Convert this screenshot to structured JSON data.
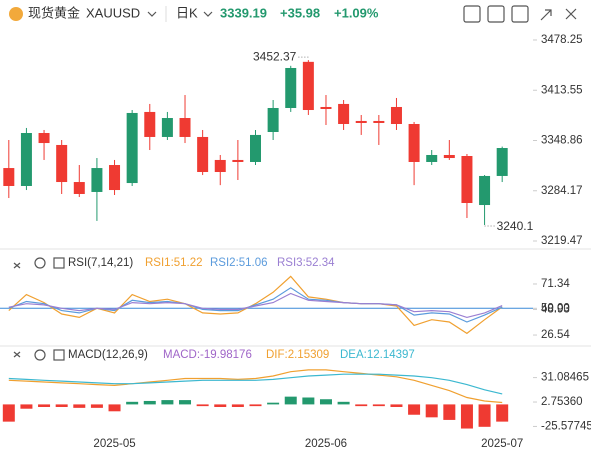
{
  "header": {
    "name": "现货黄金",
    "symbol": "XAUUSD",
    "period": "日K",
    "price": 3339.19,
    "change": "+35.98",
    "change_pct": "+1.09%"
  },
  "chart_data": [
    {
      "type": "candlestick",
      "categories": [
        null,
        null,
        null,
        null,
        null,
        null,
        "2025-05",
        null,
        null,
        null,
        null,
        null,
        null,
        null,
        null,
        null,
        null,
        null,
        "2025-06",
        null,
        null,
        null,
        null,
        null,
        null,
        null,
        null,
        null,
        "2025-07"
      ],
      "open": [
        3313.4,
        3290.3,
        3358.5,
        3343.1,
        3295.4,
        3282.6,
        3317.3,
        3294.1,
        3385.6,
        3353.4,
        3377.8,
        3353.4,
        3323.8,
        3323.8,
        3321.2,
        3359.8,
        3390.7,
        3450.1,
        3392.0,
        3395.9,
        3374.0,
        3374.0,
        3392.0,
        3370.1,
        3321.2,
        3330.2,
        3328.9,
        3265.8,
        3303.2
      ],
      "high": [
        3349.5,
        3365.0,
        3362.4,
        3349.5,
        3317.3,
        3326.3,
        3323.8,
        3388.1,
        3395.9,
        3385.6,
        3407.4,
        3362.4,
        3330.2,
        3349.5,
        3362.4,
        3401.0,
        3445.0,
        3452.37,
        3407.4,
        3401.0,
        3381.7,
        3381.7,
        3403.6,
        3372.7,
        3336.6,
        3349.5,
        3331.5,
        3304.4,
        3341.0
      ],
      "low": [
        3274.8,
        3285.1,
        3323.8,
        3280.0,
        3276.1,
        3245.35,
        3278.7,
        3290.3,
        3336.6,
        3349.5,
        3345.6,
        3304.4,
        3291.4,
        3298.0,
        3317.3,
        3349.5,
        3385.6,
        3381.7,
        3368.8,
        3362.4,
        3356.0,
        3343.1,
        3362.4,
        3291.4,
        3317.3,
        3323.8,
        3249.1,
        3240.1,
        3295.4
      ],
      "close": [
        3290.3,
        3358.5,
        3345.6,
        3295.4,
        3280.0,
        3313.4,
        3285.1,
        3384.3,
        3353.4,
        3377.8,
        3353.4,
        3308.3,
        3308.3,
        3321.2,
        3356.0,
        3390.7,
        3442.2,
        3388.1,
        3389.4,
        3370.1,
        3371.4,
        3371.4,
        3370.1,
        3321.2,
        3330.2,
        3326.3,
        3268.4,
        3303.2,
        3339.19
      ],
      "up_color": "#23996e",
      "down_color": "#ef3a32",
      "ylim": [
        3207.9,
        3491.1
      ],
      "yticks": [
        3219.47,
        3284.17,
        3348.86,
        3413.55,
        3478.25
      ]
    },
    {
      "type": "line",
      "title": "RSI(7,14,21)",
      "series": [
        {
          "name": "RSI1:51.22",
          "color": "#f0a030",
          "values": [
            48,
            62,
            55,
            45,
            42,
            50,
            46,
            62,
            56,
            58,
            54,
            46,
            45,
            46,
            54,
            64,
            78,
            60,
            58,
            55,
            54,
            54,
            52,
            35,
            40,
            38,
            28,
            40,
            51.22
          ]
        },
        {
          "name": "RSI2:51.06",
          "color": "#5b9bdc",
          "values": [
            50,
            56,
            54,
            48,
            46,
            50,
            48,
            57,
            55,
            56,
            54,
            49,
            48,
            48,
            53,
            58,
            68,
            58,
            57,
            55,
            54,
            54,
            53,
            44,
            46,
            45,
            38,
            44,
            51.06
          ]
        },
        {
          "name": "RSI3:52.34",
          "color": "#9a7fd2",
          "values": [
            51,
            54,
            53,
            50,
            48,
            50,
            49,
            55,
            54,
            55,
            54,
            50,
            49,
            49,
            52,
            55,
            63,
            57,
            56,
            55,
            54,
            54,
            53,
            47,
            48,
            47,
            42,
            46,
            52.34
          ]
        }
      ],
      "reference_line": 50,
      "reference_color": "#3a8ad8",
      "ylim": [
        17.8,
        99.4
      ],
      "yticks": [
        26.54,
        48.93,
        {
          "value": 50,
          "label": "50.00"
        },
        71.34
      ]
    },
    {
      "type": "macd",
      "title": "MACD(12,26,9)",
      "series": [
        {
          "name": "MACD:-19.98176",
          "color": "#a066c8",
          "values": [
            -20,
            -5,
            -3,
            -3,
            -4,
            -4,
            -8,
            3,
            4,
            5,
            5,
            -2,
            -3,
            -3,
            -2,
            2,
            9,
            8,
            6,
            3,
            -2,
            -2,
            -3,
            -12,
            -15,
            -18,
            -28,
            -26,
            -19.98176
          ]
        },
        {
          "name": "DIF:2.15309",
          "color": "#f0a030",
          "values": [
            28,
            27,
            26,
            25,
            24,
            23,
            22,
            24,
            26,
            28,
            30,
            30,
            30,
            29,
            30,
            33,
            38,
            40,
            40,
            38,
            36,
            34,
            32,
            28,
            22,
            16,
            8,
            4,
            2.15309
          ]
        },
        {
          "name": "DEA:12.14397",
          "color": "#3cb8d0",
          "values": [
            30,
            29,
            28,
            27,
            26,
            25,
            24,
            24,
            25,
            26,
            27,
            28,
            28,
            28,
            28,
            29,
            31,
            33,
            34,
            35,
            35,
            35,
            34,
            33,
            31,
            28,
            23,
            17,
            12.14397
          ]
        }
      ],
      "up_color": "#23996e",
      "down_color": "#ef3a32",
      "ylim": [
        -41.3,
        66.6
      ],
      "yticks": [
        -25.57745,
        {
          "value": 2.7536,
          "label": "2.75360"
        },
        31.08465
      ]
    }
  ]
}
